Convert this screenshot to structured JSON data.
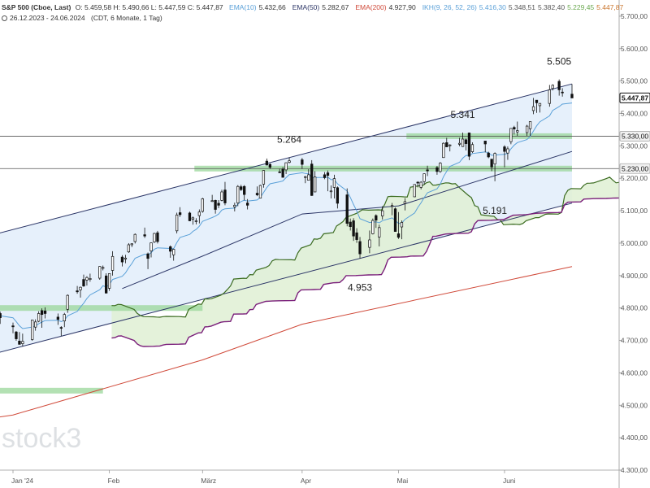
{
  "legend": {
    "instrument": "S&P 500 (Cboe, Last)",
    "ohlc": "O: 5.459,58  H: 5.490,66  L: 5.447,59  C: 5.447,87",
    "indicators": [
      {
        "label": "EMA(10)",
        "value": "5.432,66",
        "color": "#5aa0d8"
      },
      {
        "label": "EMA(50)",
        "value": "5.282,67",
        "color": "#2b3566"
      },
      {
        "label": "EMA(200)",
        "value": "4.927,90",
        "color": "#d04a3a"
      },
      {
        "label": "IKH(9, 26, 52, 26)",
        "values": [
          "5.416,30",
          "5.348,51",
          "5.382,40",
          "5.229,45",
          "5.447,87"
        ],
        "colors": [
          "#5aa0d8",
          "#555555",
          "#555555",
          "#6aa84f",
          "#c9742b"
        ]
      }
    ],
    "range": "26.12.2023 - 24.06.2024",
    "range_info": "(CDT, 6 Monate, 1 Tag)"
  },
  "watermark": "stock3",
  "chart_data": {
    "type": "candlestick",
    "x_ticks": [
      "Jan '24",
      "Feb",
      "März",
      "Apr",
      "Mai",
      "Juni"
    ],
    "y_ticks": [
      "4.300,00",
      "4.400,00",
      "4.500,00",
      "4.600,00",
      "4.700,00",
      "4.800,00",
      "4.900,00",
      "5.000,00",
      "5.100,00",
      "5.200,00",
      "5.300,00",
      "5.400,00",
      "5.500,00",
      "5.600,00",
      "5.700,00"
    ],
    "y_tick_values": [
      4300,
      4400,
      4500,
      4600,
      4700,
      4800,
      4900,
      5000,
      5100,
      5200,
      5300,
      5400,
      5500,
      5600,
      5700
    ],
    "ylim": [
      4300,
      5750
    ],
    "annotations": [
      {
        "text": "5.264",
        "date": "2024-03-28",
        "value": 5264
      },
      {
        "text": "5.341",
        "date": "2024-05-21",
        "value": 5341
      },
      {
        "text": "5.505",
        "date": "2024-06-20",
        "value": 5505
      },
      {
        "text": "5.191",
        "date": "2024-05-31",
        "value": 5191
      },
      {
        "text": "4.953",
        "date": "2024-04-19",
        "value": 4953
      }
    ],
    "price_tags": [
      {
        "text": "5.447,87",
        "value": 5447.87,
        "style": "dark"
      },
      {
        "text": "5.330,00",
        "value": 5330,
        "style": "light"
      },
      {
        "text": "5.230,00",
        "value": 5230,
        "style": "light"
      }
    ],
    "horizontal_lines": [
      5330,
      5230
    ],
    "zones": [
      {
        "from": "2024-03-01",
        "to": "2024-06-24",
        "value": 5230
      },
      {
        "from": "2024-05-06",
        "to": "2024-06-24",
        "value": 5330
      },
      {
        "from": "2023-12-26",
        "to": "2024-03-01",
        "value": 4800
      },
      {
        "from": "2023-12-26",
        "to": "2024-01-30",
        "value": 4545
      }
    ],
    "colors": {
      "up": "#111111",
      "down": "#111111",
      "channel": "#2b3566",
      "channel_fill": "#e6f0fb",
      "ema10": "#5aa0d8",
      "ema50": "#2b3566",
      "ema200": "#d04a3a",
      "cloud_upper": "#7a1f7a",
      "cloud_lower": "#3a6b1f",
      "cloud_fill": "#dff0d4",
      "zone": "#9ad79a"
    },
    "candles": [
      {
        "date": "2023-12-26",
        "o": 4758,
        "h": 4784,
        "l": 4751,
        "c": 4775
      },
      {
        "date": "2023-12-27",
        "o": 4773,
        "h": 4785,
        "l": 4767,
        "c": 4782
      },
      {
        "date": "2023-12-28",
        "o": 4786,
        "h": 4794,
        "l": 4780,
        "c": 4783
      },
      {
        "date": "2023-12-29",
        "o": 4783,
        "h": 4789,
        "l": 4751,
        "c": 4770
      },
      {
        "date": "2024-01-02",
        "o": 4745,
        "h": 4755,
        "l": 4722,
        "c": 4742
      },
      {
        "date": "2024-01-03",
        "o": 4726,
        "h": 4729,
        "l": 4699,
        "c": 4705
      },
      {
        "date": "2024-01-04",
        "o": 4698,
        "h": 4726,
        "l": 4687,
        "c": 4688
      },
      {
        "date": "2024-01-05",
        "o": 4690,
        "h": 4721,
        "l": 4682,
        "c": 4697
      },
      {
        "date": "2024-01-08",
        "o": 4703,
        "h": 4764,
        "l": 4699,
        "c": 4763
      },
      {
        "date": "2024-01-09",
        "o": 4741,
        "h": 4765,
        "l": 4730,
        "c": 4757
      },
      {
        "date": "2024-01-10",
        "o": 4759,
        "h": 4790,
        "l": 4756,
        "c": 4783
      },
      {
        "date": "2024-01-11",
        "o": 4792,
        "h": 4799,
        "l": 4739,
        "c": 4780
      },
      {
        "date": "2024-01-12",
        "o": 4791,
        "h": 4802,
        "l": 4768,
        "c": 4783
      },
      {
        "date": "2024-01-16",
        "o": 4772,
        "h": 4783,
        "l": 4748,
        "c": 4765
      },
      {
        "date": "2024-01-17",
        "o": 4740,
        "h": 4744,
        "l": 4714,
        "c": 4739
      },
      {
        "date": "2024-01-18",
        "o": 4760,
        "h": 4785,
        "l": 4741,
        "c": 4780
      },
      {
        "date": "2024-01-19",
        "o": 4796,
        "h": 4842,
        "l": 4785,
        "c": 4839
      },
      {
        "date": "2024-01-22",
        "o": 4853,
        "h": 4868,
        "l": 4844,
        "c": 4850
      },
      {
        "date": "2024-01-23",
        "o": 4856,
        "h": 4866,
        "l": 4832,
        "c": 4864
      },
      {
        "date": "2024-01-24",
        "o": 4888,
        "h": 4903,
        "l": 4865,
        "c": 4868
      },
      {
        "date": "2024-01-25",
        "o": 4886,
        "h": 4898,
        "l": 4869,
        "c": 4894
      },
      {
        "date": "2024-01-26",
        "o": 4888,
        "h": 4906,
        "l": 4881,
        "c": 4891
      },
      {
        "date": "2024-01-29",
        "o": 4892,
        "h": 4929,
        "l": 4887,
        "c": 4928
      },
      {
        "date": "2024-01-30",
        "o": 4925,
        "h": 4931,
        "l": 4916,
        "c": 4925
      },
      {
        "date": "2024-01-31",
        "o": 4899,
        "h": 4907,
        "l": 4845,
        "c": 4846
      },
      {
        "date": "2024-02-01",
        "o": 4861,
        "h": 4906,
        "l": 4853,
        "c": 4906
      },
      {
        "date": "2024-02-02",
        "o": 4916,
        "h": 4975,
        "l": 4900,
        "c": 4959
      },
      {
        "date": "2024-02-05",
        "o": 4957,
        "h": 4963,
        "l": 4928,
        "c": 4942
      },
      {
        "date": "2024-02-06",
        "o": 4951,
        "h": 4964,
        "l": 4938,
        "c": 4954
      },
      {
        "date": "2024-02-07",
        "o": 4973,
        "h": 5000,
        "l": 4970,
        "c": 4995
      },
      {
        "date": "2024-02-08",
        "o": 4995,
        "h": 5000,
        "l": 4988,
        "c": 4998
      },
      {
        "date": "2024-02-09",
        "o": 5005,
        "h": 5030,
        "l": 4999,
        "c": 5027
      },
      {
        "date": "2024-02-12",
        "o": 5026,
        "h": 5048,
        "l": 5016,
        "c": 5022
      },
      {
        "date": "2024-02-13",
        "o": 4967,
        "h": 4971,
        "l": 4920,
        "c": 4953
      },
      {
        "date": "2024-02-14",
        "o": 4976,
        "h": 5002,
        "l": 4956,
        "c": 5001
      },
      {
        "date": "2024-02-15",
        "o": 5004,
        "h": 5032,
        "l": 5001,
        "c": 5030
      },
      {
        "date": "2024-02-16",
        "o": 5032,
        "h": 5038,
        "l": 4999,
        "c": 5005
      },
      {
        "date": "2024-02-20",
        "o": 4989,
        "h": 4993,
        "l": 4955,
        "c": 4975
      },
      {
        "date": "2024-02-21",
        "o": 4964,
        "h": 4983,
        "l": 4946,
        "c": 4981
      },
      {
        "date": "2024-02-22",
        "o": 5038,
        "h": 5094,
        "l": 5030,
        "c": 5087
      },
      {
        "date": "2024-02-23",
        "o": 5094,
        "h": 5111,
        "l": 5081,
        "c": 5088
      },
      {
        "date": "2024-02-26",
        "o": 5093,
        "h": 5097,
        "l": 5068,
        "c": 5069
      },
      {
        "date": "2024-02-27",
        "o": 5074,
        "h": 5082,
        "l": 5057,
        "c": 5078
      },
      {
        "date": "2024-02-28",
        "o": 5068,
        "h": 5077,
        "l": 5058,
        "c": 5069
      },
      {
        "date": "2024-02-29",
        "o": 5085,
        "h": 5104,
        "l": 5061,
        "c": 5096
      },
      {
        "date": "2024-03-01",
        "o": 5098,
        "h": 5140,
        "l": 5094,
        "c": 5137
      },
      {
        "date": "2024-03-04",
        "o": 5130,
        "h": 5149,
        "l": 5127,
        "c": 5131
      },
      {
        "date": "2024-03-05",
        "o": 5132,
        "h": 5134,
        "l": 5091,
        "c": 5104
      },
      {
        "date": "2024-03-06",
        "o": 5123,
        "h": 5133,
        "l": 5108,
        "c": 5117
      },
      {
        "date": "2024-03-07",
        "o": 5132,
        "h": 5165,
        "l": 5129,
        "c": 5158
      },
      {
        "date": "2024-03-08",
        "o": 5164,
        "h": 5189,
        "l": 5117,
        "c": 5124
      },
      {
        "date": "2024-03-11",
        "o": 5112,
        "h": 5125,
        "l": 5098,
        "c": 5117
      },
      {
        "date": "2024-03-12",
        "o": 5124,
        "h": 5179,
        "l": 5114,
        "c": 5175
      },
      {
        "date": "2024-03-13",
        "o": 5174,
        "h": 5180,
        "l": 5161,
        "c": 5165
      },
      {
        "date": "2024-03-14",
        "o": 5175,
        "h": 5179,
        "l": 5132,
        "c": 5150
      },
      {
        "date": "2024-03-15",
        "o": 5124,
        "h": 5136,
        "l": 5104,
        "c": 5117
      },
      {
        "date": "2024-03-18",
        "o": 5154,
        "h": 5175,
        "l": 5145,
        "c": 5149
      },
      {
        "date": "2024-03-19",
        "o": 5139,
        "h": 5180,
        "l": 5138,
        "c": 5178
      },
      {
        "date": "2024-03-20",
        "o": 5182,
        "h": 5225,
        "l": 5171,
        "c": 5224
      },
      {
        "date": "2024-03-21",
        "o": 5253,
        "h": 5261,
        "l": 5240,
        "c": 5241
      },
      {
        "date": "2024-03-22",
        "o": 5243,
        "h": 5246,
        "l": 5229,
        "c": 5234
      },
      {
        "date": "2024-03-25",
        "o": 5220,
        "h": 5229,
        "l": 5216,
        "c": 5218
      },
      {
        "date": "2024-03-26",
        "o": 5228,
        "h": 5235,
        "l": 5203,
        "c": 5203
      },
      {
        "date": "2024-03-27",
        "o": 5226,
        "h": 5249,
        "l": 5213,
        "c": 5248
      },
      {
        "date": "2024-03-28",
        "o": 5249,
        "h": 5264,
        "l": 5246,
        "c": 5254
      },
      {
        "date": "2024-04-01",
        "o": 5257,
        "h": 5263,
        "l": 5229,
        "c": 5243
      },
      {
        "date": "2024-04-02",
        "o": 5204,
        "h": 5208,
        "l": 5185,
        "c": 5205
      },
      {
        "date": "2024-04-03",
        "o": 5194,
        "h": 5228,
        "l": 5194,
        "c": 5211
      },
      {
        "date": "2024-04-04",
        "o": 5244,
        "h": 5256,
        "l": 5146,
        "c": 5147
      },
      {
        "date": "2024-04-05",
        "o": 5158,
        "h": 5222,
        "l": 5157,
        "c": 5204
      },
      {
        "date": "2024-04-08",
        "o": 5211,
        "h": 5219,
        "l": 5197,
        "c": 5202
      },
      {
        "date": "2024-04-09",
        "o": 5217,
        "h": 5224,
        "l": 5160,
        "c": 5209
      },
      {
        "date": "2024-04-10",
        "o": 5160,
        "h": 5178,
        "l": 5138,
        "c": 5161
      },
      {
        "date": "2024-04-11",
        "o": 5172,
        "h": 5211,
        "l": 5138,
        "c": 5199
      },
      {
        "date": "2024-04-12",
        "o": 5171,
        "h": 5175,
        "l": 5107,
        "c": 5123
      },
      {
        "date": "2024-04-15",
        "o": 5149,
        "h": 5169,
        "l": 5052,
        "c": 5061
      },
      {
        "date": "2024-04-16",
        "o": 5065,
        "h": 5076,
        "l": 5039,
        "c": 5051
      },
      {
        "date": "2024-04-17",
        "o": 5069,
        "h": 5077,
        "l": 5007,
        "c": 5022
      },
      {
        "date": "2024-04-18",
        "o": 5032,
        "h": 5046,
        "l": 5001,
        "c": 5011
      },
      {
        "date": "2024-04-19",
        "o": 5005,
        "h": 5019,
        "l": 4953,
        "c": 4967
      },
      {
        "date": "2024-04-22",
        "o": 4987,
        "h": 5039,
        "l": 4969,
        "c": 5010
      },
      {
        "date": "2024-04-23",
        "o": 5029,
        "h": 5076,
        "l": 5027,
        "c": 5070
      },
      {
        "date": "2024-04-24",
        "o": 5085,
        "h": 5089,
        "l": 5047,
        "c": 5071
      },
      {
        "date": "2024-04-25",
        "o": 5019,
        "h": 5057,
        "l": 4990,
        "c": 5048
      },
      {
        "date": "2024-04-26",
        "o": 5084,
        "h": 5114,
        "l": 5073,
        "c": 5100
      },
      {
        "date": "2024-04-29",
        "o": 5114,
        "h": 5124,
        "l": 5086,
        "c": 5116
      },
      {
        "date": "2024-04-30",
        "o": 5106,
        "h": 5110,
        "l": 5035,
        "c": 5036
      },
      {
        "date": "2024-05-01",
        "o": 5029,
        "h": 5096,
        "l": 5013,
        "c": 5018
      },
      {
        "date": "2024-05-02",
        "o": 5050,
        "h": 5070,
        "l": 5012,
        "c": 5064
      },
      {
        "date": "2024-05-03",
        "o": 5122,
        "h": 5139,
        "l": 5101,
        "c": 5128
      },
      {
        "date": "2024-05-06",
        "o": 5143,
        "h": 5181,
        "l": 5142,
        "c": 5181
      },
      {
        "date": "2024-05-07",
        "o": 5188,
        "h": 5191,
        "l": 5172,
        "c": 5187
      },
      {
        "date": "2024-05-08",
        "o": 5172,
        "h": 5191,
        "l": 5166,
        "c": 5188
      },
      {
        "date": "2024-05-09",
        "o": 5190,
        "h": 5215,
        "l": 5180,
        "c": 5214
      },
      {
        "date": "2024-05-10",
        "o": 5226,
        "h": 5239,
        "l": 5207,
        "c": 5223
      },
      {
        "date": "2024-05-13",
        "o": 5233,
        "h": 5238,
        "l": 5211,
        "c": 5221
      },
      {
        "date": "2024-05-14",
        "o": 5221,
        "h": 5250,
        "l": 5217,
        "c": 5247
      },
      {
        "date": "2024-05-15",
        "o": 5264,
        "h": 5311,
        "l": 5263,
        "c": 5308
      },
      {
        "date": "2024-05-16",
        "o": 5310,
        "h": 5325,
        "l": 5297,
        "c": 5297
      },
      {
        "date": "2024-05-17",
        "o": 5303,
        "h": 5305,
        "l": 5283,
        "c": 5303
      },
      {
        "date": "2024-05-20",
        "o": 5305,
        "h": 5325,
        "l": 5299,
        "c": 5308
      },
      {
        "date": "2024-05-21",
        "o": 5298,
        "h": 5341,
        "l": 5297,
        "c": 5321
      },
      {
        "date": "2024-05-22",
        "o": 5319,
        "h": 5323,
        "l": 5286,
        "c": 5307
      },
      {
        "date": "2024-05-23",
        "o": 5340,
        "h": 5341,
        "l": 5256,
        "c": 5268
      },
      {
        "date": "2024-05-24",
        "o": 5282,
        "h": 5311,
        "l": 5278,
        "c": 5304
      },
      {
        "date": "2024-05-28",
        "o": 5315,
        "h": 5315,
        "l": 5280,
        "c": 5306
      },
      {
        "date": "2024-05-29",
        "o": 5278,
        "h": 5282,
        "l": 5262,
        "c": 5266
      },
      {
        "date": "2024-05-30",
        "o": 5259,
        "h": 5260,
        "l": 5222,
        "c": 5235
      },
      {
        "date": "2024-05-31",
        "o": 5244,
        "h": 5280,
        "l": 5191,
        "c": 5277
      },
      {
        "date": "2024-06-03",
        "o": 5297,
        "h": 5302,
        "l": 5234,
        "c": 5283
      },
      {
        "date": "2024-06-04",
        "o": 5278,
        "h": 5298,
        "l": 5257,
        "c": 5291
      },
      {
        "date": "2024-06-05",
        "o": 5313,
        "h": 5354,
        "l": 5305,
        "c": 5354
      },
      {
        "date": "2024-06-06",
        "o": 5357,
        "h": 5362,
        "l": 5335,
        "c": 5352
      },
      {
        "date": "2024-06-07",
        "o": 5343,
        "h": 5375,
        "l": 5331,
        "c": 5347
      },
      {
        "date": "2024-06-10",
        "o": 5341,
        "h": 5365,
        "l": 5331,
        "c": 5361
      },
      {
        "date": "2024-06-11",
        "o": 5353,
        "h": 5376,
        "l": 5331,
        "c": 5375
      },
      {
        "date": "2024-06-12",
        "o": 5409,
        "h": 5448,
        "l": 5398,
        "c": 5421
      },
      {
        "date": "2024-06-13",
        "o": 5441,
        "h": 5441,
        "l": 5402,
        "c": 5433
      },
      {
        "date": "2024-06-14",
        "o": 5424,
        "h": 5432,
        "l": 5403,
        "c": 5431
      },
      {
        "date": "2024-06-17",
        "o": 5431,
        "h": 5488,
        "l": 5421,
        "c": 5473
      },
      {
        "date": "2024-06-18",
        "o": 5477,
        "h": 5490,
        "l": 5471,
        "c": 5487
      },
      {
        "date": "2024-06-20",
        "o": 5499,
        "h": 5505,
        "l": 5455,
        "c": 5473
      },
      {
        "date": "2024-06-21",
        "o": 5466,
        "h": 5478,
        "l": 5452,
        "c": 5464
      },
      {
        "date": "2024-06-24",
        "o": 5459.58,
        "h": 5490.66,
        "l": 5447.59,
        "c": 5447.87
      }
    ]
  }
}
